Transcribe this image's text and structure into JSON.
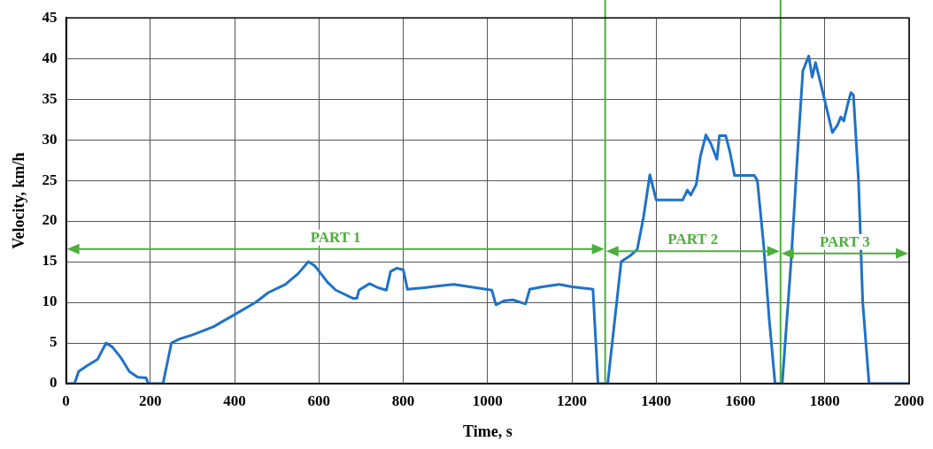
{
  "chart_data": {
    "type": "line",
    "xlabel": "Time, s",
    "ylabel": "Velocity, km/h",
    "xlim": [
      0,
      2000
    ],
    "xticks": [
      0,
      200,
      400,
      600,
      800,
      1000,
      1200,
      1400,
      1600,
      1800,
      2000
    ],
    "ylim": [
      0,
      45
    ],
    "yticks": [
      0,
      5,
      10,
      15,
      20,
      25,
      30,
      35,
      40,
      45
    ],
    "grid": true,
    "legend": false,
    "marker": "none",
    "line_style": "solid",
    "series": [
      {
        "color": "#1f72c8",
        "x": [
          0,
          20,
          30,
          50,
          75,
          95,
          110,
          130,
          150,
          170,
          190,
          195,
          230,
          240,
          250,
          270,
          300,
          350,
          400,
          450,
          480,
          520,
          550,
          575,
          590,
          620,
          640,
          680,
          690,
          695,
          720,
          740,
          760,
          770,
          785,
          800,
          810,
          850,
          880,
          920,
          1010,
          1020,
          1040,
          1060,
          1090,
          1100,
          1130,
          1170,
          1200,
          1250,
          1262,
          1285,
          1317,
          1340,
          1355,
          1370,
          1385,
          1400,
          1463,
          1474,
          1482,
          1495,
          1505,
          1518,
          1530,
          1544,
          1550,
          1565,
          1575,
          1586,
          1633,
          1640,
          1655,
          1668,
          1682,
          1699,
          1720,
          1735,
          1748,
          1762,
          1770,
          1778,
          1790,
          1818,
          1830,
          1838,
          1845,
          1855,
          1862,
          1868,
          1880,
          1890,
          1905,
          2000
        ],
        "values": [
          0,
          0,
          1.5,
          2.2,
          3,
          5,
          4.5,
          3.2,
          1.5,
          0.8,
          0.7,
          0,
          0,
          2.5,
          5,
          5.5,
          6,
          7,
          8.5,
          10,
          11.2,
          12.2,
          13.5,
          15,
          14.5,
          12.5,
          11.5,
          10.5,
          10.5,
          11.5,
          12.3,
          11.8,
          11.5,
          13.8,
          14.2,
          14,
          11.6,
          11.8,
          12,
          12.2,
          11.5,
          9.7,
          10.2,
          10.3,
          9.8,
          11.6,
          11.9,
          12.2,
          11.9,
          11.6,
          0,
          0,
          15,
          15.8,
          16.5,
          20.5,
          25.7,
          22.6,
          22.6,
          23.8,
          23.2,
          24.5,
          28,
          30.6,
          29.5,
          27.6,
          30.5,
          30.5,
          28.5,
          25.6,
          25.6,
          25,
          17,
          8,
          0,
          0,
          15,
          28,
          38.5,
          40.3,
          37.7,
          39.5,
          37,
          30.9,
          31.8,
          32.8,
          32.3,
          34.5,
          35.8,
          35.5,
          25,
          10,
          0,
          0
        ]
      }
    ],
    "ref_lines": [
      {
        "axis": "x",
        "value": 1279,
        "color": "#4caf3c"
      },
      {
        "axis": "x",
        "value": 1695,
        "color": "#4caf3c"
      }
    ],
    "annotations": [
      "PART 1",
      "PART 2",
      "PART 3"
    ]
  }
}
